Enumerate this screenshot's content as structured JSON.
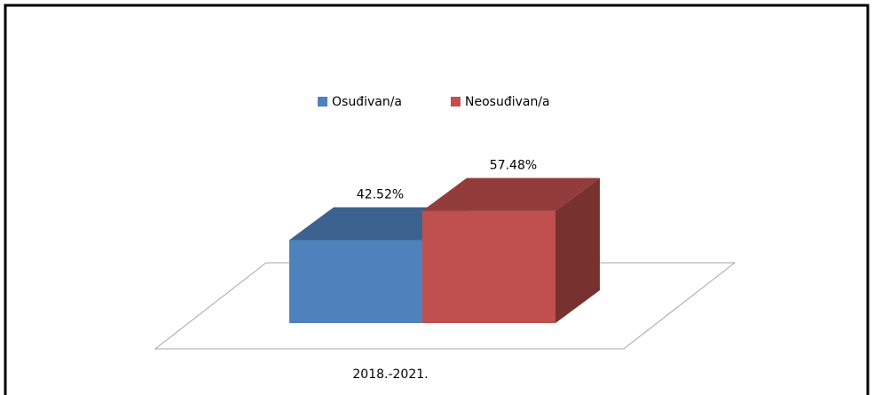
{
  "chart_data": {
    "type": "bar",
    "categories": [
      "2018.-2021."
    ],
    "series": [
      {
        "name": "Osuđivan/a",
        "color": "#4f81bd",
        "values": [
          42.52
        ],
        "value_labels": [
          "42.52%"
        ]
      },
      {
        "name": "Neosuđivan/a",
        "color": "#c0504d",
        "values": [
          57.48
        ],
        "value_labels": [
          "57.48%"
        ]
      }
    ],
    "legend": "top"
  }
}
